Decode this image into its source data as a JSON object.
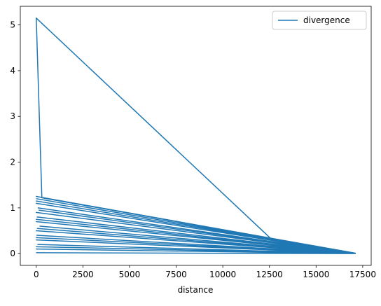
{
  "chart_data": {
    "type": "line",
    "x_label": "distance",
    "x": [
      12700,
      0,
      300,
      17100,
      0,
      17100,
      20,
      17100,
      0,
      17100,
      100,
      17100,
      0,
      17100,
      50,
      17100,
      0,
      17100,
      200,
      17100,
      0,
      17100,
      30,
      17100,
      0,
      17100,
      80,
      17100,
      0,
      17100,
      10,
      17100,
      0,
      17100,
      150,
      17100,
      0,
      17100,
      60,
      17100,
      0,
      17100,
      0,
      17100
    ],
    "series": [
      {
        "name": "divergence",
        "color": "#1f77b4",
        "values": [
          0.28,
          5.15,
          1.22,
          0.01,
          1.25,
          0.0,
          1.2,
          0.0,
          1.1,
          0.0,
          1.0,
          0.0,
          0.9,
          0.0,
          0.8,
          0.0,
          0.7,
          0.0,
          0.6,
          0.0,
          0.5,
          0.0,
          0.4,
          0.0,
          0.3,
          0.0,
          0.2,
          0.0,
          0.1,
          0.0,
          0.02,
          0.0,
          1.15,
          0.0,
          0.95,
          0.0,
          0.75,
          0.0,
          0.55,
          0.0,
          0.35,
          0.0,
          0.15,
          0.0
        ]
      }
    ],
    "xlim": [
      -855,
      17955
    ],
    "ylim": [
      -0.2575,
      5.4075
    ],
    "xticks": [
      0,
      2500,
      5000,
      7500,
      10000,
      12500,
      15000,
      17500
    ],
    "yticks": [
      0,
      1,
      2,
      3,
      4,
      5
    ],
    "legend": "upper right",
    "grid": false
  }
}
